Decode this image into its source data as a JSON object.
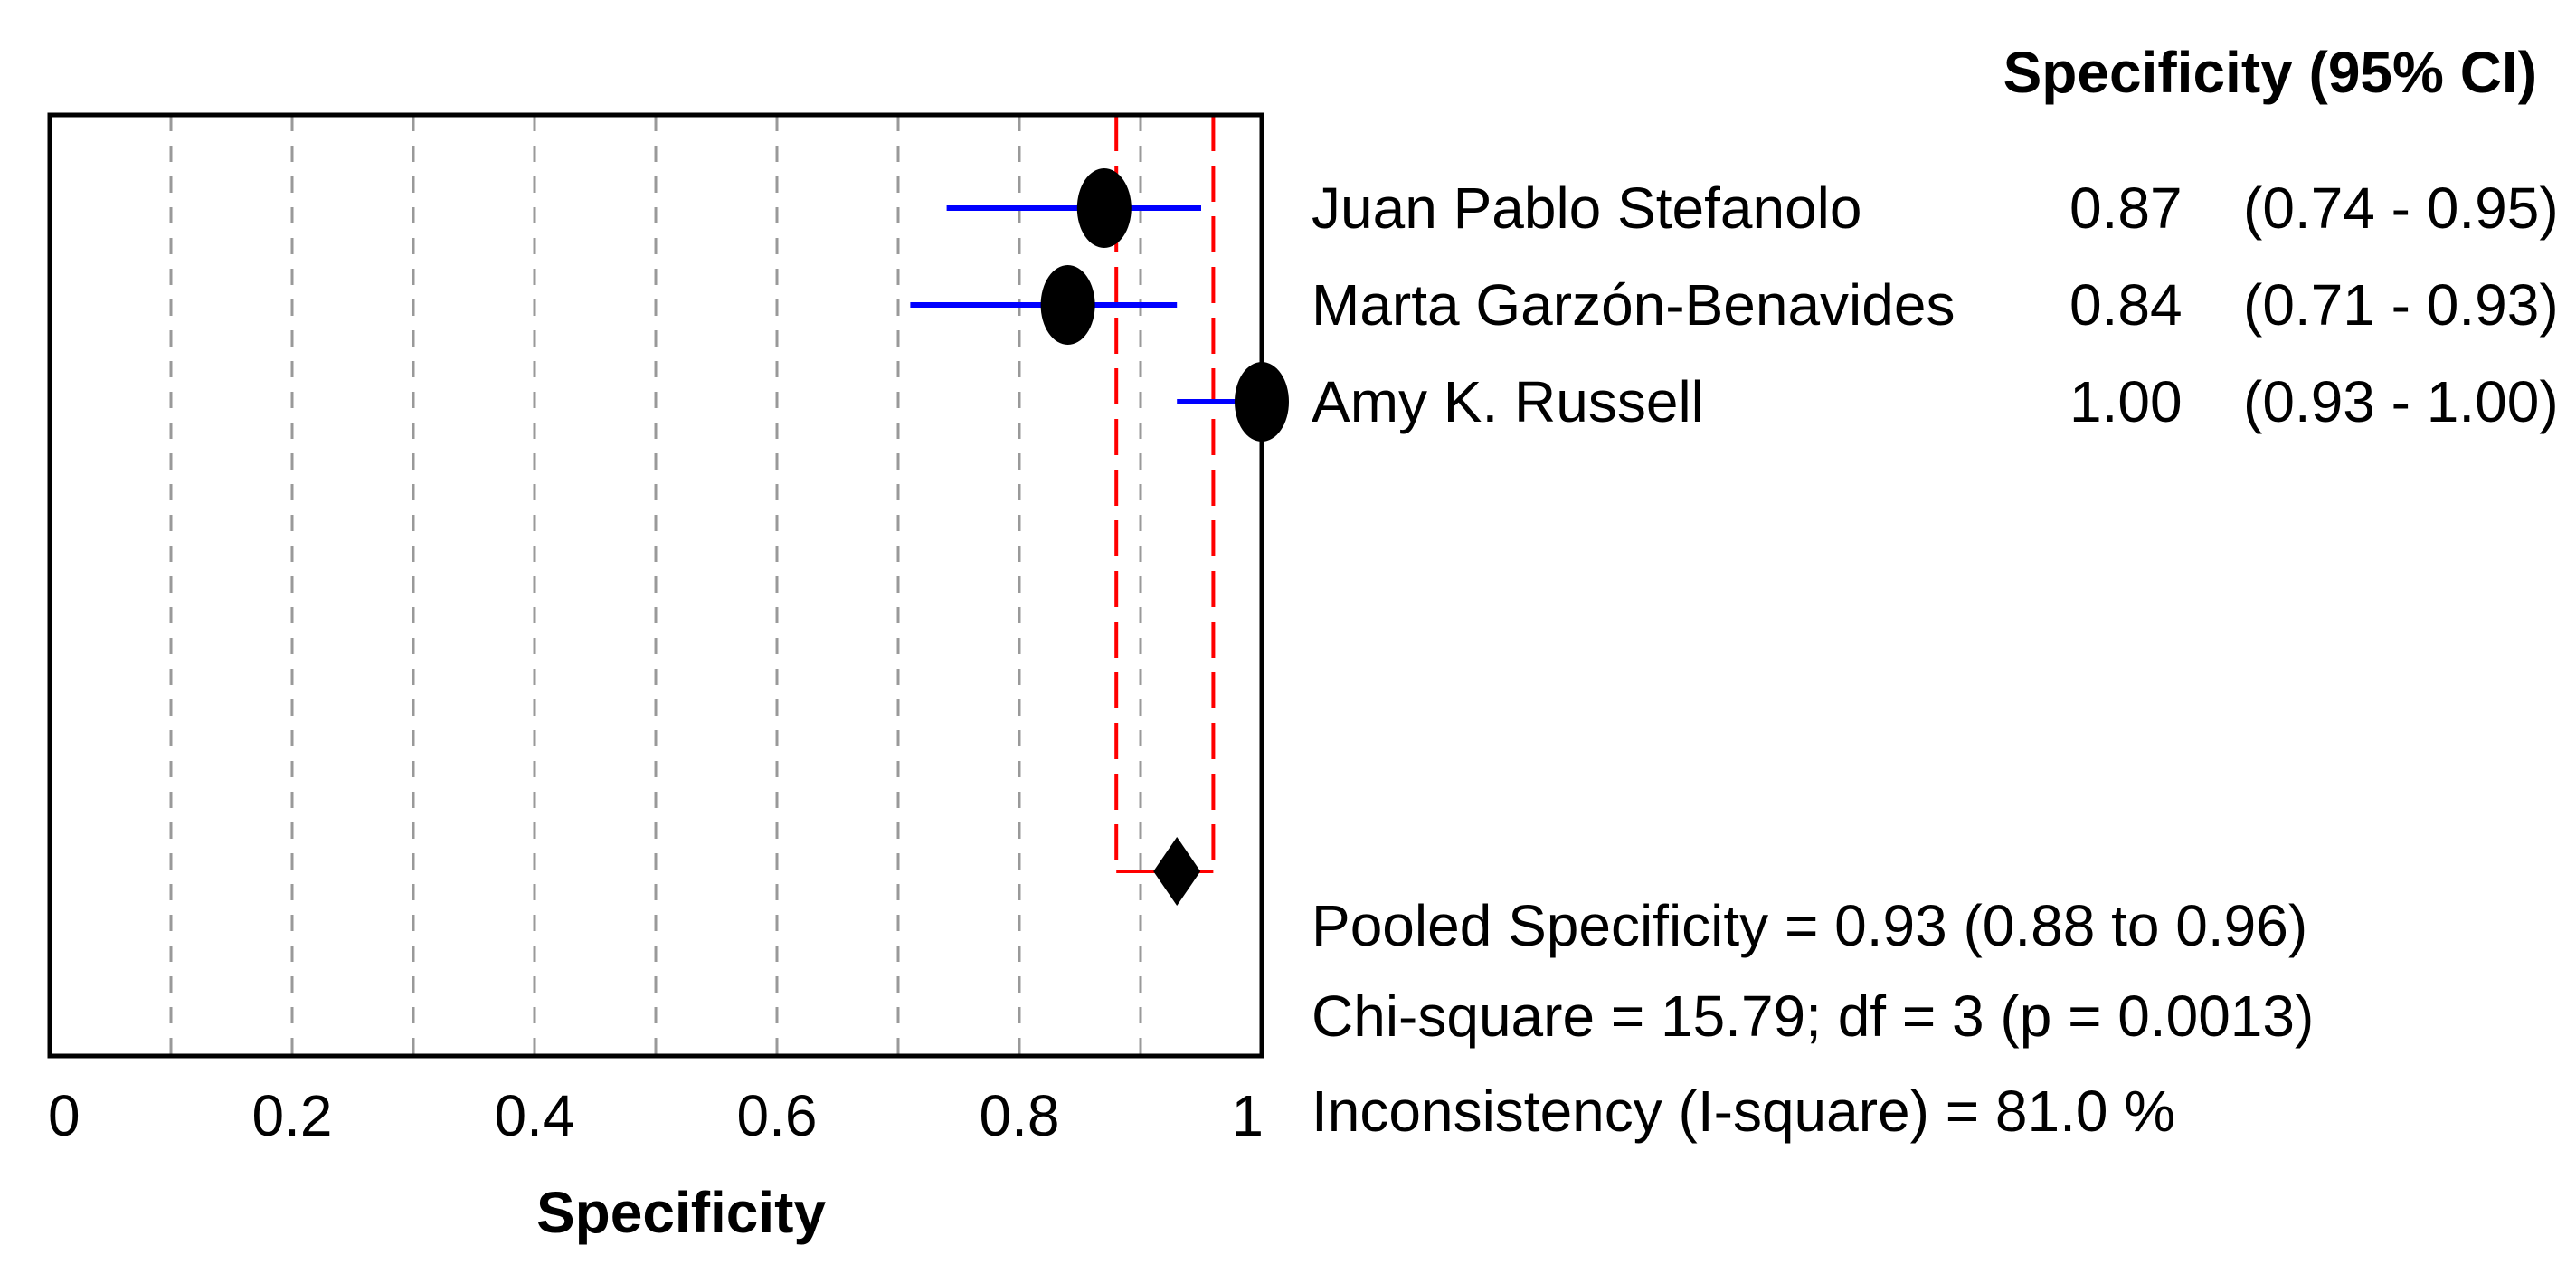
{
  "chart_data": {
    "type": "forest",
    "title": "",
    "xlabel": "Specificity",
    "ylabel": "",
    "xlim": [
      0,
      1
    ],
    "x_ticks": [
      0,
      0.2,
      0.4,
      0.6,
      0.8,
      1
    ],
    "x_tick_labels": [
      "0",
      "0.2",
      "0.4",
      "0.6",
      "0.8",
      "1"
    ],
    "grid": "vertical dashed",
    "column_header": "Specificity (95% CI)",
    "studies": [
      {
        "name": "Juan Pablo Stefanolo",
        "estimate": 0.87,
        "ci_low": 0.74,
        "ci_high": 0.95,
        "estimate_text": "0.87",
        "ci_text": "(0.74 - 0.95)"
      },
      {
        "name": "Marta Garzón-Benavides",
        "estimate": 0.84,
        "ci_low": 0.71,
        "ci_high": 0.93,
        "estimate_text": "0.84",
        "ci_text": "(0.71 - 0.93)"
      },
      {
        "name": "Amy K. Russell",
        "estimate": 1.0,
        "ci_low": 0.93,
        "ci_high": 1.0,
        "estimate_text": "1.00",
        "ci_text": "(0.93 - 1.00)"
      }
    ],
    "pooled": {
      "estimate": 0.93,
      "ci_low": 0.88,
      "ci_high": 0.96
    },
    "stats": [
      "Pooled Specificity = 0.93 (0.88 to 0.96)",
      "Chi-square = 15.79; df =  3 (p = 0.0013)",
      "Inconsistency (I-square) = 81.0 %"
    ],
    "colors": {
      "ci_line": "#0000ff",
      "marker": "#000000",
      "pooled_lines": "#ff0000",
      "grid": "#999999",
      "frame": "#000000"
    }
  }
}
